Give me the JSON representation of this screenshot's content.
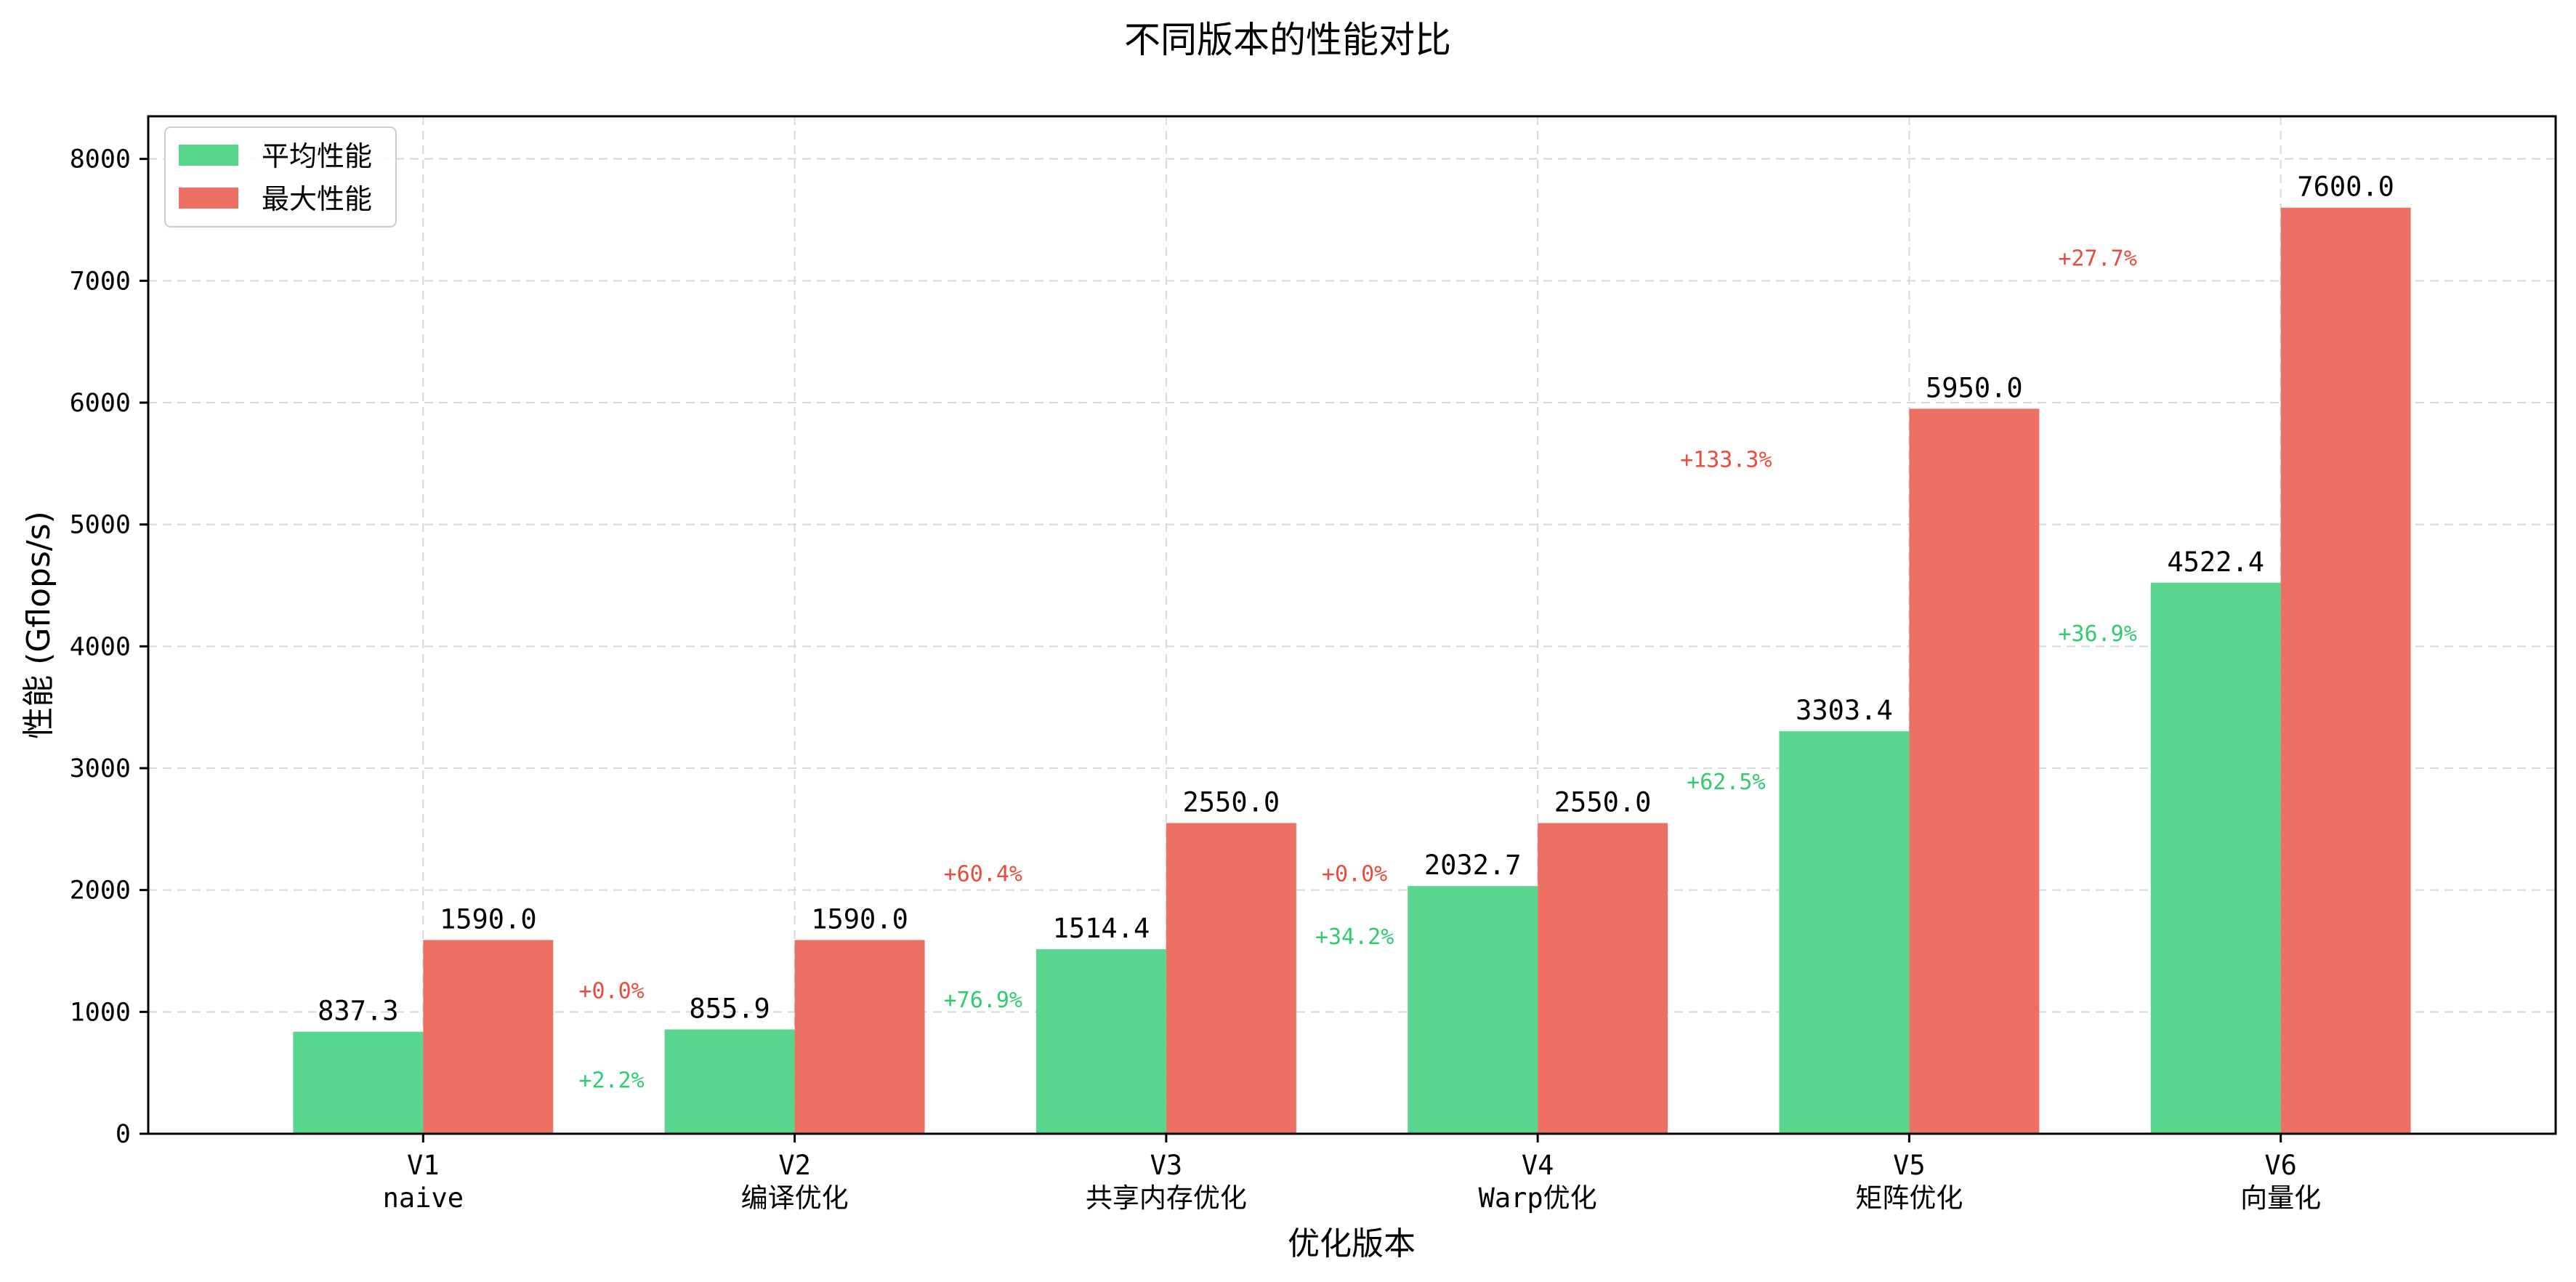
{
  "chart_data": {
    "type": "bar",
    "title": "不同版本的性能对比",
    "xlabel": "优化版本",
    "ylabel": "性能 (Gflops/s)",
    "ylim": [
      0,
      8350
    ],
    "yticks": [
      "0",
      "1000",
      "2000",
      "3000",
      "4000",
      "5000",
      "6000",
      "7000",
      "8000"
    ],
    "grid": true,
    "legend_position": "top-left",
    "categories": [
      "V1\nnaive",
      "V2\n编译优化",
      "V3\n共享内存优化",
      "V4\nWarp优化",
      "V5\n矩阵优化",
      "V6\n向量化"
    ],
    "series": [
      {
        "name": "平均性能",
        "color": "#58d68d",
        "values": [
          837.3,
          855.9,
          1514.4,
          2032.7,
          3303.4,
          4522.4
        ],
        "labels": [
          "837.3",
          "855.9",
          "1514.4",
          "2032.7",
          "3303.4",
          "4522.4"
        ],
        "growth_labels": [
          "",
          "+2.2%",
          "+76.9%",
          "+34.2%",
          "+62.5%",
          "+36.9%"
        ],
        "growth_color": "#2ecc71"
      },
      {
        "name": "最大性能",
        "color": "#ec7063",
        "values": [
          1590.0,
          1590.0,
          2550.0,
          2550.0,
          5950.0,
          7600.0
        ],
        "labels": [
          "1590.0",
          "1590.0",
          "2550.0",
          "2550.0",
          "5950.0",
          "7600.0"
        ],
        "growth_labels": [
          "",
          "+0.0%",
          "+60.4%",
          "+0.0%",
          "+133.3%",
          "+27.7%"
        ],
        "growth_color": "#e74c3c"
      }
    ]
  }
}
